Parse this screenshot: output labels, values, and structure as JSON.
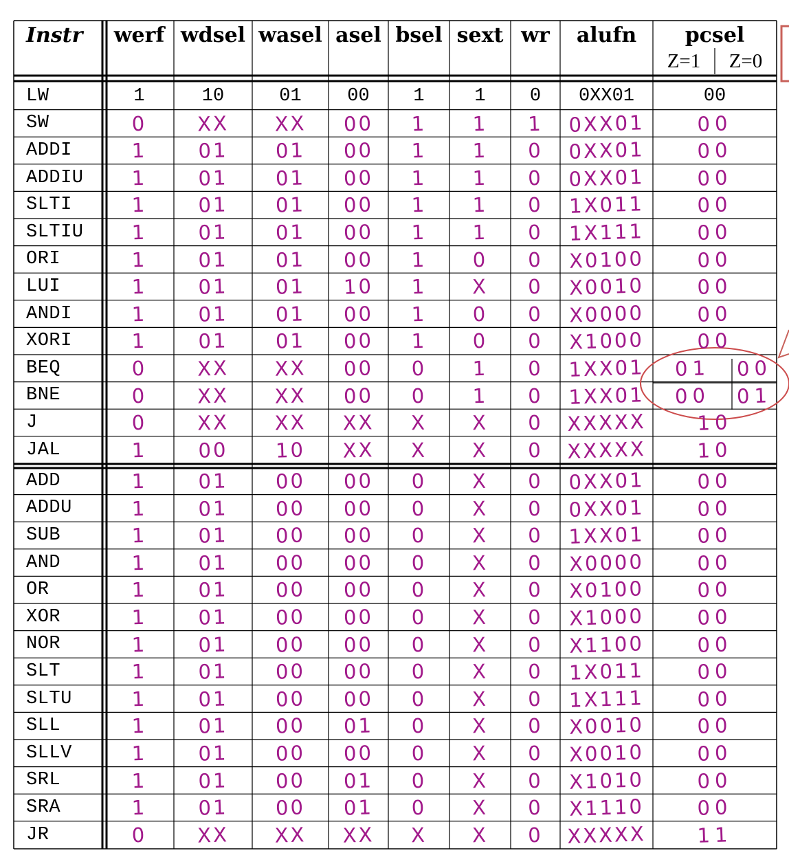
{
  "headers": {
    "instr": "Instr",
    "werf": "werf",
    "wdsel": "wdsel",
    "wasel": "wasel",
    "asel": "asel",
    "bsel": "bsel",
    "sext": "sext",
    "wr": "wr",
    "alufn": "alufn",
    "pcsel": "pcsel",
    "pcsel_z1": "Z=1",
    "pcsel_z0": "Z=0"
  },
  "rows": [
    {
      "instr": "LW",
      "werf": "1",
      "wdsel": "10",
      "wasel": "01",
      "asel": "00",
      "bsel": "1",
      "sext": "1",
      "wr": "0",
      "alufn": "0XX01",
      "pcsel": "00"
    },
    {
      "instr": "SW",
      "werf": "0",
      "wdsel": "XX",
      "wasel": "XX",
      "asel": "00",
      "bsel": "1",
      "sext": "1",
      "wr": "1",
      "alufn": "0XX01",
      "pcsel": "00"
    },
    {
      "instr": "ADDI",
      "werf": "1",
      "wdsel": "01",
      "wasel": "01",
      "asel": "00",
      "bsel": "1",
      "sext": "1",
      "wr": "0",
      "alufn": "0XX01",
      "pcsel": "00"
    },
    {
      "instr": "ADDIU",
      "werf": "1",
      "wdsel": "01",
      "wasel": "01",
      "asel": "00",
      "bsel": "1",
      "sext": "1",
      "wr": "0",
      "alufn": "0XX01",
      "pcsel": "00"
    },
    {
      "instr": "SLTI",
      "werf": "1",
      "wdsel": "01",
      "wasel": "01",
      "asel": "00",
      "bsel": "1",
      "sext": "1",
      "wr": "0",
      "alufn": "1X011",
      "pcsel": "00"
    },
    {
      "instr": "SLTIU",
      "werf": "1",
      "wdsel": "01",
      "wasel": "01",
      "asel": "00",
      "bsel": "1",
      "sext": "1",
      "wr": "0",
      "alufn": "1X111",
      "pcsel": "00"
    },
    {
      "instr": "ORI",
      "werf": "1",
      "wdsel": "01",
      "wasel": "01",
      "asel": "00",
      "bsel": "1",
      "sext": "0",
      "wr": "0",
      "alufn": "X0100",
      "pcsel": "00"
    },
    {
      "instr": "LUI",
      "werf": "1",
      "wdsel": "01",
      "wasel": "01",
      "asel": "10",
      "bsel": "1",
      "sext": "X",
      "wr": "0",
      "alufn": "X0010",
      "pcsel": "00"
    },
    {
      "instr": "ANDI",
      "werf": "1",
      "wdsel": "01",
      "wasel": "01",
      "asel": "00",
      "bsel": "1",
      "sext": "0",
      "wr": "0",
      "alufn": "X0000",
      "pcsel": "00"
    },
    {
      "instr": "XORI",
      "werf": "1",
      "wdsel": "01",
      "wasel": "01",
      "asel": "00",
      "bsel": "1",
      "sext": "0",
      "wr": "0",
      "alufn": "X1000",
      "pcsel": "00"
    },
    {
      "instr": "BEQ",
      "werf": "0",
      "wdsel": "XX",
      "wasel": "XX",
      "asel": "00",
      "bsel": "0",
      "sext": "1",
      "wr": "0",
      "alufn": "1XX01",
      "pcsel_z1": "01",
      "pcsel_z0": "00"
    },
    {
      "instr": "BNE",
      "werf": "0",
      "wdsel": "XX",
      "wasel": "XX",
      "asel": "00",
      "bsel": "0",
      "sext": "1",
      "wr": "0",
      "alufn": "1XX01",
      "pcsel_z1": "00",
      "pcsel_z0": "01"
    },
    {
      "instr": "J",
      "werf": "0",
      "wdsel": "XX",
      "wasel": "XX",
      "asel": "XX",
      "bsel": "X",
      "sext": "X",
      "wr": "0",
      "alufn": "XXXXX",
      "pcsel": "10"
    },
    {
      "instr": "JAL",
      "werf": "1",
      "wdsel": "00",
      "wasel": "10",
      "asel": "XX",
      "bsel": "X",
      "sext": "X",
      "wr": "0",
      "alufn": "XXXXX",
      "pcsel": "10"
    },
    {
      "instr": "ADD",
      "werf": "1",
      "wdsel": "01",
      "wasel": "00",
      "asel": "00",
      "bsel": "0",
      "sext": "X",
      "wr": "0",
      "alufn": "0XX01",
      "pcsel": "00"
    },
    {
      "instr": "ADDU",
      "werf": "1",
      "wdsel": "01",
      "wasel": "00",
      "asel": "00",
      "bsel": "0",
      "sext": "X",
      "wr": "0",
      "alufn": "0XX01",
      "pcsel": "00"
    },
    {
      "instr": "SUB",
      "werf": "1",
      "wdsel": "01",
      "wasel": "00",
      "asel": "00",
      "bsel": "0",
      "sext": "X",
      "wr": "0",
      "alufn": "1XX01",
      "pcsel": "00"
    },
    {
      "instr": "AND",
      "werf": "1",
      "wdsel": "01",
      "wasel": "00",
      "asel": "00",
      "bsel": "0",
      "sext": "X",
      "wr": "0",
      "alufn": "X0000",
      "pcsel": "00"
    },
    {
      "instr": "OR",
      "werf": "1",
      "wdsel": "01",
      "wasel": "00",
      "asel": "00",
      "bsel": "0",
      "sext": "X",
      "wr": "0",
      "alufn": "X0100",
      "pcsel": "00"
    },
    {
      "instr": "XOR",
      "werf": "1",
      "wdsel": "01",
      "wasel": "00",
      "asel": "00",
      "bsel": "0",
      "sext": "X",
      "wr": "0",
      "alufn": "X1000",
      "pcsel": "00"
    },
    {
      "instr": "NOR",
      "werf": "1",
      "wdsel": "01",
      "wasel": "00",
      "asel": "00",
      "bsel": "0",
      "sext": "X",
      "wr": "0",
      "alufn": "X1100",
      "pcsel": "00"
    },
    {
      "instr": "SLT",
      "werf": "1",
      "wdsel": "01",
      "wasel": "00",
      "asel": "00",
      "bsel": "0",
      "sext": "X",
      "wr": "0",
      "alufn": "1X011",
      "pcsel": "00"
    },
    {
      "instr": "SLTU",
      "werf": "1",
      "wdsel": "01",
      "wasel": "00",
      "asel": "00",
      "bsel": "0",
      "sext": "X",
      "wr": "0",
      "alufn": "1X111",
      "pcsel": "00"
    },
    {
      "instr": "SLL",
      "werf": "1",
      "wdsel": "01",
      "wasel": "00",
      "asel": "01",
      "bsel": "0",
      "sext": "X",
      "wr": "0",
      "alufn": "X0010",
      "pcsel": "00"
    },
    {
      "instr": "SLLV",
      "werf": "1",
      "wdsel": "01",
      "wasel": "00",
      "asel": "00",
      "bsel": "0",
      "sext": "X",
      "wr": "0",
      "alufn": "X0010",
      "pcsel": "00"
    },
    {
      "instr": "SRL",
      "werf": "1",
      "wdsel": "01",
      "wasel": "00",
      "asel": "01",
      "bsel": "0",
      "sext": "X",
      "wr": "0",
      "alufn": "X1010",
      "pcsel": "00"
    },
    {
      "instr": "SRA",
      "werf": "1",
      "wdsel": "01",
      "wasel": "00",
      "asel": "01",
      "bsel": "0",
      "sext": "X",
      "wr": "0",
      "alufn": "X1110",
      "pcsel": "00"
    },
    {
      "instr": "JR",
      "werf": "0",
      "wdsel": "XX",
      "wasel": "XX",
      "asel": "XX",
      "bsel": "X",
      "sext": "X",
      "wr": "0",
      "alufn": "XXXXX",
      "pcsel": "11"
    }
  ],
  "colors": {
    "ink": "#a1198a",
    "grid": "#000000",
    "circle": "#cc4b4b",
    "callout": "#c8615a"
  }
}
